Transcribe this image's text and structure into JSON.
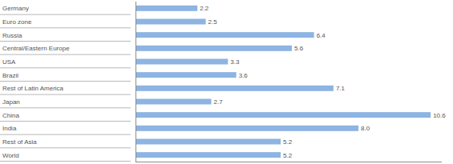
{
  "chart_data": {
    "type": "bar",
    "orientation": "horizontal",
    "categories": [
      "Germany",
      "Euro zone",
      "Russia",
      "Central/Eastern Europe",
      "USA",
      "Brazil",
      "Rest of Latin America",
      "Japan",
      "China",
      "India",
      "Rest of Asia",
      "World"
    ],
    "values": [
      2.2,
      2.5,
      6.4,
      5.6,
      3.3,
      3.6,
      7.1,
      2.7,
      10.6,
      8.0,
      5.2,
      5.2
    ],
    "value_labels": [
      "2.2",
      "2.5",
      "6.4",
      "5.6",
      "3.3",
      "3.6",
      "7.1",
      "2.7",
      "10.6",
      "8.0",
      "5.2",
      "5.2"
    ],
    "color": "#8db4e2",
    "xlim": [
      0,
      11
    ],
    "data_labels": true,
    "tick_labels": false,
    "grid": false
  }
}
